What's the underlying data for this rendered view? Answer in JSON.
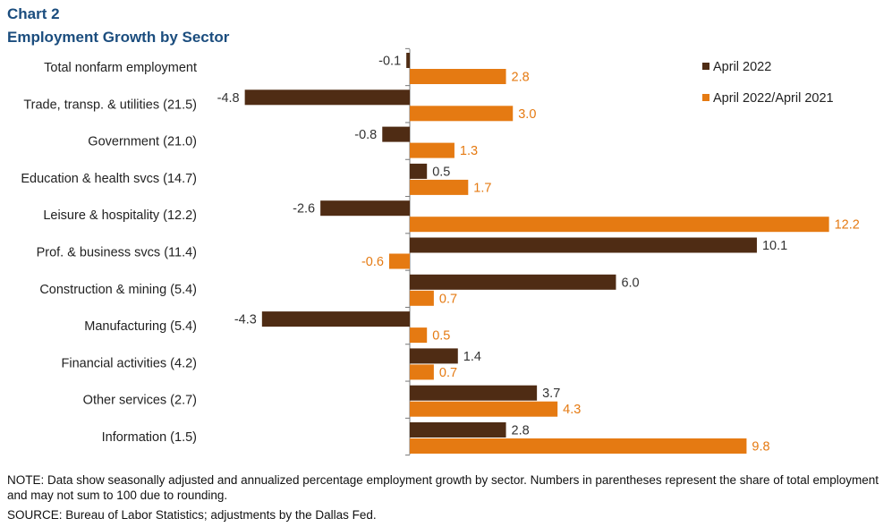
{
  "header": {
    "label": "Chart 2",
    "title": "Employment Growth by Sector"
  },
  "chart_data": {
    "type": "bar",
    "orientation": "horizontal",
    "title": "Employment Growth by Sector",
    "categories": [
      "Total nonfarm employment",
      "Trade, transp. & utilities (21.5)",
      "Government (21.0)",
      "Education & health svcs (14.7)",
      "Leisure & hospitality (12.2)",
      "Prof. & business svcs (11.4)",
      "Construction & mining (5.4)",
      "Manufacturing (5.4)",
      "Financial activities (4.2)",
      "Other services (2.7)",
      "Information (1.5)"
    ],
    "series": [
      {
        "name": "April 2022",
        "color": "#4f2c14",
        "values": [
          -0.1,
          -4.8,
          -0.8,
          0.5,
          -2.6,
          10.1,
          6.0,
          -4.3,
          1.4,
          3.7,
          2.8
        ],
        "labels": [
          "-0.1",
          "-4.8",
          "-0.8",
          "0.5",
          "-2.6",
          "10.1",
          "6.0",
          "-4.3",
          "1.4",
          "3.7",
          "2.8"
        ]
      },
      {
        "name": "April 2022/April 2021",
        "color": "#e57a12",
        "values": [
          2.8,
          3.0,
          1.3,
          1.7,
          12.2,
          -0.6,
          0.7,
          0.5,
          0.7,
          4.3,
          9.8
        ],
        "labels": [
          "2.8",
          "3.0",
          "1.3",
          "1.7",
          "12.2",
          "-0.6",
          "0.7",
          "0.5",
          "0.7",
          "4.3",
          "9.8"
        ]
      }
    ],
    "xlim": [
      -4.8,
      12.2
    ],
    "xlabel": "",
    "ylabel": "",
    "legend": "top-right",
    "grid": false
  },
  "footer": {
    "note": "NOTE: Data show seasonally adjusted and annualized percentage employment growth by sector. Numbers in parentheses represent the share of total employment and may not sum to 100 due to rounding.",
    "source": "SOURCE: Bureau of Labor Statistics; adjustments by the Dallas Fed."
  }
}
